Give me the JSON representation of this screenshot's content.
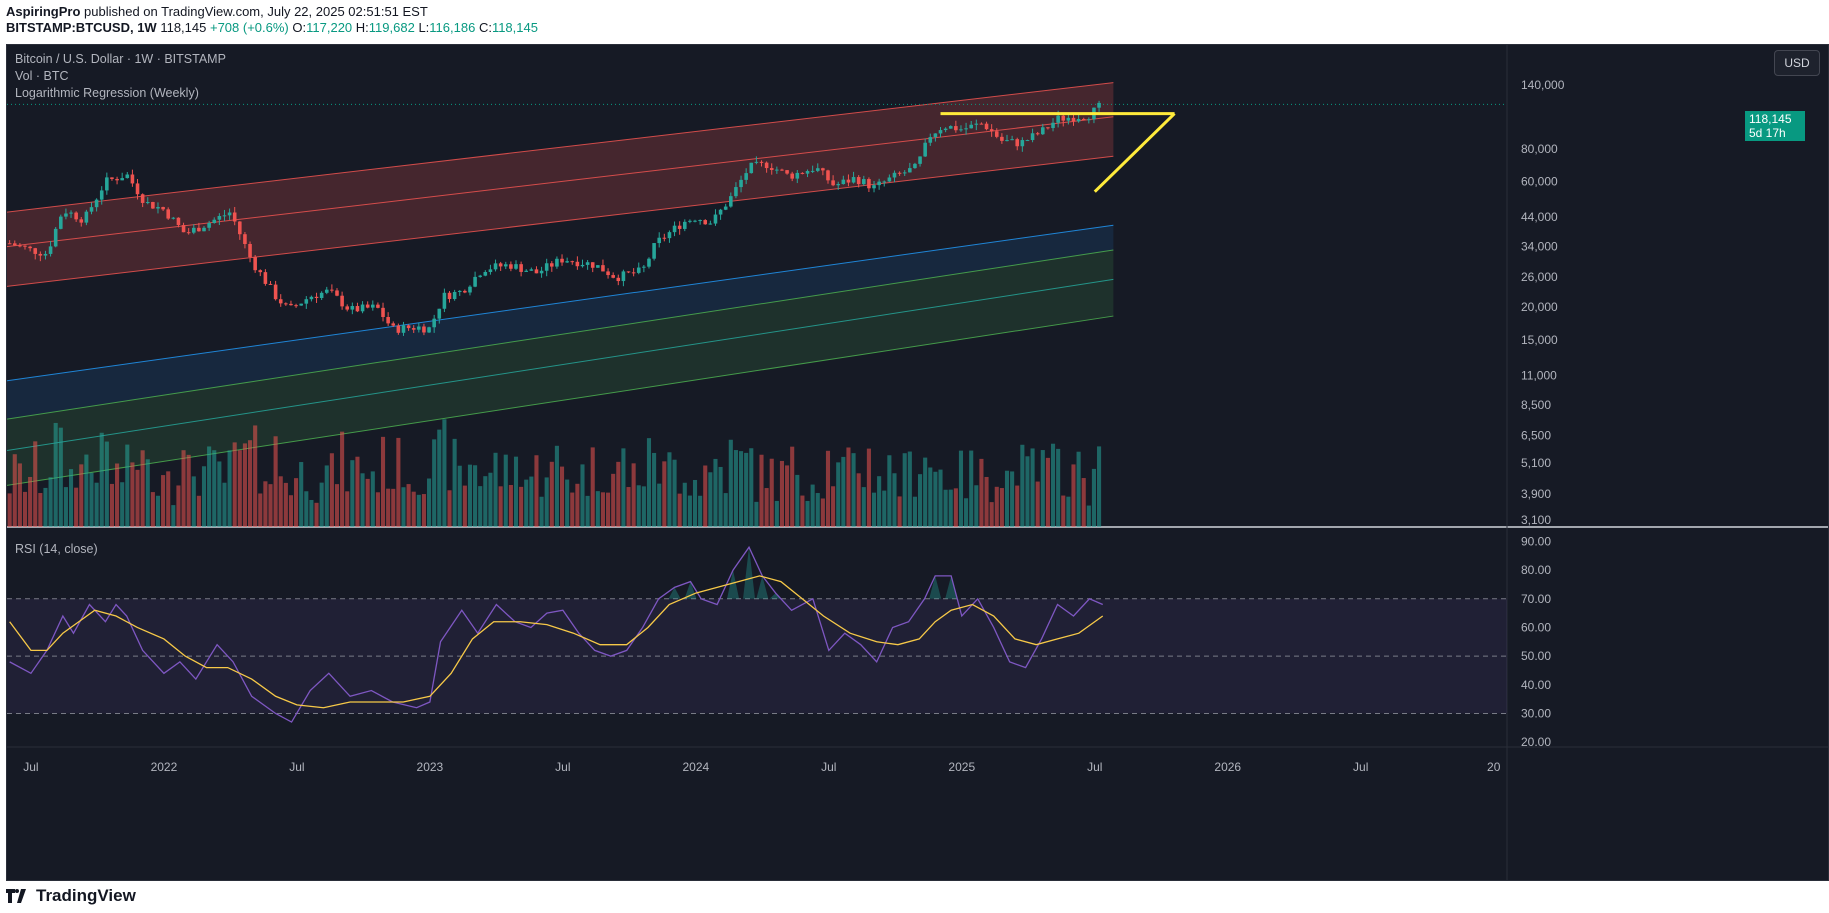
{
  "header": {
    "publisher": "AspiringPro",
    "published_text": "published on TradingView.com, July 22, 2025 02:51:51 EST",
    "symbol": "BITSTAMP:BTCUSD, 1W",
    "last": "118,145",
    "change": "+708 (+0.6%)",
    "o_label": "O:",
    "o": "117,220",
    "h_label": "H:",
    "h": "119,682",
    "l_label": "L:",
    "l": "116,186",
    "c_label": "C:",
    "c": "118,145"
  },
  "legend": {
    "title": "Bitcoin / U.S. Dollar · 1W · BITSTAMP",
    "vol": "Vol · BTC",
    "regression": "Logarithmic Regression (Weekly)",
    "rsi": "RSI (14, close)"
  },
  "currency_button": "USD",
  "price_tag": {
    "price": "118,145",
    "countdown": "5d 17h"
  },
  "footer": {
    "logo_text": "TradingView"
  },
  "colors": {
    "bg": "#161a25",
    "up": "#26a69a",
    "down": "#ef5350",
    "rsi_line": "#7e57c2",
    "rsi_ma": "#f7c948",
    "trendline": "#ffeb3b"
  },
  "chart_data": [
    {
      "type": "candlestick",
      "title": "Bitcoin / U.S. Dollar · 1W · BITSTAMP",
      "scale": "log",
      "y_tick_labels": [
        "140,000",
        "80,000",
        "60,000",
        "44,000",
        "34,000",
        "26,000",
        "20,000",
        "15,000",
        "11,000",
        "8,500",
        "6,500",
        "5,100",
        "3,900",
        "3,100"
      ],
      "y_tick_values": [
        140000,
        80000,
        60000,
        44000,
        34000,
        26000,
        20000,
        15000,
        11000,
        8500,
        6500,
        5100,
        3900,
        3100
      ],
      "x_tick_labels": [
        "Jul",
        "2022",
        "Jul",
        "2023",
        "Jul",
        "2024",
        "Jul",
        "2025",
        "Jul",
        "2026",
        "Jul",
        "20"
      ],
      "x_tick_dates": [
        2021.5,
        2022.0,
        2022.5,
        2023.0,
        2023.5,
        2024.0,
        2024.5,
        2025.0,
        2025.5,
        2026.0,
        2026.5,
        2027.0
      ],
      "x_range": [
        2021.41,
        2027.05
      ],
      "price_anchors": [
        [
          2021.42,
          35000
        ],
        [
          2021.5,
          33000
        ],
        [
          2021.56,
          32000
        ],
        [
          2021.62,
          47000
        ],
        [
          2021.7,
          43000
        ],
        [
          2021.78,
          60000
        ],
        [
          2021.86,
          64000
        ],
        [
          2021.93,
          50000
        ],
        [
          2022.0,
          47000
        ],
        [
          2022.08,
          38000
        ],
        [
          2022.17,
          42000
        ],
        [
          2022.25,
          46000
        ],
        [
          2022.33,
          30000
        ],
        [
          2022.42,
          22000
        ],
        [
          2022.47,
          19500
        ],
        [
          2022.55,
          22000
        ],
        [
          2022.62,
          23000
        ],
        [
          2022.7,
          19500
        ],
        [
          2022.8,
          20000
        ],
        [
          2022.86,
          16500
        ],
        [
          2022.95,
          16800
        ],
        [
          2023.0,
          16600
        ],
        [
          2023.05,
          22000
        ],
        [
          2023.12,
          23000
        ],
        [
          2023.2,
          28000
        ],
        [
          2023.3,
          29000
        ],
        [
          2023.4,
          27000
        ],
        [
          2023.5,
          30500
        ],
        [
          2023.62,
          29000
        ],
        [
          2023.7,
          26000
        ],
        [
          2023.8,
          27500
        ],
        [
          2023.85,
          35000
        ],
        [
          2023.95,
          42000
        ],
        [
          2024.0,
          44000
        ],
        [
          2024.06,
          42000
        ],
        [
          2024.13,
          52000
        ],
        [
          2024.2,
          68000
        ],
        [
          2024.27,
          70000
        ],
        [
          2024.35,
          63000
        ],
        [
          2024.45,
          68000
        ],
        [
          2024.52,
          58000
        ],
        [
          2024.6,
          62000
        ],
        [
          2024.67,
          57000
        ],
        [
          2024.75,
          63000
        ],
        [
          2024.83,
          68000
        ],
        [
          2024.88,
          90000
        ],
        [
          2024.93,
          98000
        ],
        [
          2025.0,
          95000
        ],
        [
          2025.08,
          100000
        ],
        [
          2025.15,
          86000
        ],
        [
          2025.22,
          84000
        ],
        [
          2025.3,
          93000
        ],
        [
          2025.36,
          104000
        ],
        [
          2025.42,
          106000
        ],
        [
          2025.48,
          108000
        ],
        [
          2025.53,
          118145
        ]
      ],
      "regression_bands": [
        {
          "name": "upper",
          "color": "#ef5350",
          "from": [
            2021.41,
            46000
          ],
          "to": [
            2025.57,
            143000
          ]
        },
        {
          "name": "upper-mid",
          "color": "#ef5350",
          "from": [
            2021.41,
            34000
          ],
          "to": [
            2025.57,
            106000
          ]
        },
        {
          "name": "upper-low",
          "color": "#ef5350",
          "from": [
            2021.41,
            24000
          ],
          "to": [
            2025.57,
            75000
          ]
        },
        {
          "name": "blue",
          "color": "#2196f3",
          "from": [
            2021.41,
            10500
          ],
          "to": [
            2025.57,
            41000
          ]
        },
        {
          "name": "green-top",
          "color": "#4caf50",
          "from": [
            2021.41,
            7500
          ],
          "to": [
            2025.57,
            33000
          ]
        },
        {
          "name": "green-mid",
          "color": "#26a69a",
          "from": [
            2021.41,
            5700
          ],
          "to": [
            2025.57,
            25500
          ]
        },
        {
          "name": "green-low",
          "color": "#4caf50",
          "from": [
            2021.41,
            4200
          ],
          "to": [
            2025.57,
            18500
          ]
        }
      ],
      "trendlines": [
        {
          "from": [
            2025.5,
            55000
          ],
          "to": [
            2025.8,
            109000
          ]
        },
        {
          "from": [
            2024.92,
            109000
          ],
          "to": [
            2025.8,
            109000
          ]
        }
      ],
      "volume": {
        "title": "Vol · BTC"
      }
    },
    {
      "type": "line",
      "title": "RSI (14, close)",
      "y_tick_labels": [
        "90.00",
        "80.00",
        "70.00",
        "60.00",
        "50.00",
        "40.00",
        "30.00",
        "20.00"
      ],
      "y_tick_values": [
        90,
        80,
        70,
        60,
        50,
        40,
        30,
        20
      ],
      "ylim": [
        19,
        94
      ],
      "bands": [
        30,
        50,
        70
      ],
      "rsi_anchors": [
        [
          2021.42,
          48
        ],
        [
          2021.5,
          44
        ],
        [
          2021.56,
          52
        ],
        [
          2021.62,
          64
        ],
        [
          2021.66,
          58
        ],
        [
          2021.72,
          68
        ],
        [
          2021.78,
          62
        ],
        [
          2021.82,
          68
        ],
        [
          2021.86,
          64
        ],
        [
          2021.92,
          52
        ],
        [
          2022.0,
          44
        ],
        [
          2022.06,
          48
        ],
        [
          2022.12,
          42
        ],
        [
          2022.2,
          54
        ],
        [
          2022.26,
          48
        ],
        [
          2022.33,
          36
        ],
        [
          2022.42,
          30
        ],
        [
          2022.48,
          27
        ],
        [
          2022.55,
          38
        ],
        [
          2022.62,
          44
        ],
        [
          2022.7,
          36
        ],
        [
          2022.78,
          38
        ],
        [
          2022.86,
          34
        ],
        [
          2022.95,
          32
        ],
        [
          2023.0,
          34
        ],
        [
          2023.04,
          55
        ],
        [
          2023.12,
          66
        ],
        [
          2023.18,
          58
        ],
        [
          2023.25,
          68
        ],
        [
          2023.32,
          62
        ],
        [
          2023.38,
          60
        ],
        [
          2023.44,
          65
        ],
        [
          2023.5,
          66
        ],
        [
          2023.56,
          58
        ],
        [
          2023.62,
          52
        ],
        [
          2023.68,
          50
        ],
        [
          2023.74,
          52
        ],
        [
          2023.8,
          60
        ],
        [
          2023.86,
          70
        ],
        [
          2023.92,
          74
        ],
        [
          2023.98,
          76
        ],
        [
          2024.02,
          70
        ],
        [
          2024.08,
          68
        ],
        [
          2024.14,
          80
        ],
        [
          2024.2,
          88
        ],
        [
          2024.25,
          78
        ],
        [
          2024.3,
          72
        ],
        [
          2024.36,
          66
        ],
        [
          2024.44,
          70
        ],
        [
          2024.5,
          52
        ],
        [
          2024.56,
          58
        ],
        [
          2024.62,
          54
        ],
        [
          2024.68,
          48
        ],
        [
          2024.74,
          60
        ],
        [
          2024.8,
          62
        ],
        [
          2024.86,
          70
        ],
        [
          2024.9,
          78
        ],
        [
          2024.96,
          78
        ],
        [
          2025.0,
          64
        ],
        [
          2025.06,
          70
        ],
        [
          2025.12,
          60
        ],
        [
          2025.18,
          48
        ],
        [
          2025.24,
          46
        ],
        [
          2025.3,
          56
        ],
        [
          2025.36,
          68
        ],
        [
          2025.42,
          64
        ],
        [
          2025.48,
          70
        ],
        [
          2025.53,
          68
        ]
      ],
      "rsi_ma_anchors": [
        [
          2021.42,
          62
        ],
        [
          2021.5,
          52
        ],
        [
          2021.56,
          52
        ],
        [
          2021.62,
          58
        ],
        [
          2021.68,
          62
        ],
        [
          2021.74,
          66
        ],
        [
          2021.82,
          64
        ],
        [
          2021.9,
          60
        ],
        [
          2022.0,
          56
        ],
        [
          2022.08,
          50
        ],
        [
          2022.16,
          46
        ],
        [
          2022.24,
          46
        ],
        [
          2022.33,
          42
        ],
        [
          2022.42,
          36
        ],
        [
          2022.5,
          33
        ],
        [
          2022.6,
          32
        ],
        [
          2022.7,
          34
        ],
        [
          2022.8,
          34
        ],
        [
          2022.9,
          34
        ],
        [
          2023.0,
          36
        ],
        [
          2023.08,
          44
        ],
        [
          2023.16,
          56
        ],
        [
          2023.24,
          62
        ],
        [
          2023.34,
          62
        ],
        [
          2023.44,
          61
        ],
        [
          2023.54,
          58
        ],
        [
          2023.64,
          54
        ],
        [
          2023.74,
          54
        ],
        [
          2023.82,
          60
        ],
        [
          2023.9,
          68
        ],
        [
          2024.0,
          72
        ],
        [
          2024.08,
          74
        ],
        [
          2024.16,
          76
        ],
        [
          2024.24,
          78
        ],
        [
          2024.32,
          76
        ],
        [
          2024.4,
          70
        ],
        [
          2024.48,
          64
        ],
        [
          2024.58,
          58
        ],
        [
          2024.68,
          55
        ],
        [
          2024.76,
          54
        ],
        [
          2024.84,
          56
        ],
        [
          2024.9,
          62
        ],
        [
          2024.96,
          66
        ],
        [
          2025.04,
          68
        ],
        [
          2025.12,
          64
        ],
        [
          2025.2,
          56
        ],
        [
          2025.28,
          54
        ],
        [
          2025.36,
          56
        ],
        [
          2025.44,
          58
        ],
        [
          2025.53,
          64
        ]
      ]
    }
  ]
}
